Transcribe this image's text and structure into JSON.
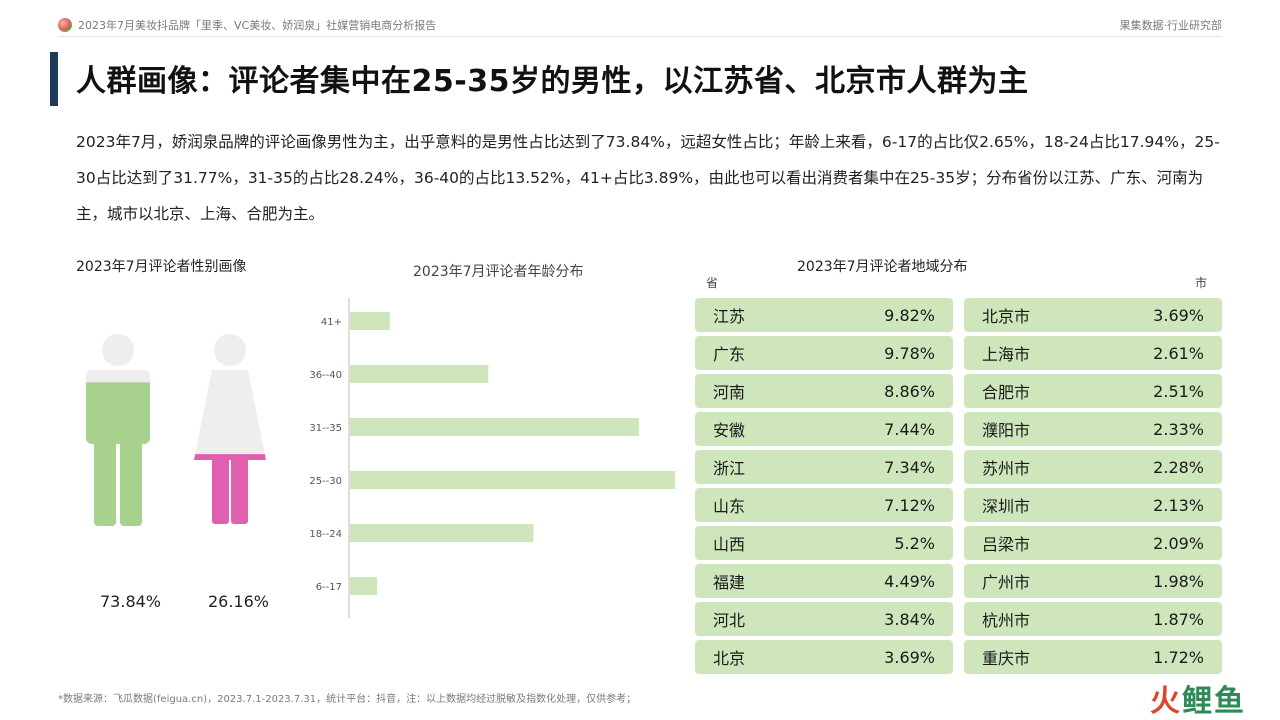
{
  "header": {
    "left": "2023年7月美妆抖品牌「里季、VC美妆、娇润泉」社媒营销电商分析报告",
    "right": "果集数据·行业研究部"
  },
  "title": "人群画像：评论者集中在25-35岁的男性，以江苏省、北京市人群为主",
  "paragraph": "2023年7月，娇润泉品牌的评论画像男性为主，出乎意料的是男性占比达到了73.84%，远超女性占比；年龄上来看，6-17的占比仅2.65%，18-24占比17.94%，25-30占比达到了31.77%，31-35的占比28.24%，36-40的占比13.52%，41+占比3.89%，由此也可以看出消费者集中在25-35岁；分布省份以江苏、广东、河南为主，城市以北京、上海、合肥为主。",
  "gender": {
    "title": "2023年7月评论者性别画像",
    "male_pct": "73.84%",
    "female_pct": "26.16%",
    "male_fill": 0.7384,
    "female_fill": 0.2616,
    "colors": {
      "male": "#a9d18e",
      "female": "#e05fae",
      "empty": "#eeeeee"
    }
  },
  "chart_data": {
    "type": "bar",
    "orientation": "horizontal",
    "title": "2023年7月评论者年龄分布",
    "categories": [
      "41+",
      "36--40",
      "31--35",
      "25--30",
      "18--24",
      "6--17"
    ],
    "values": [
      3.89,
      13.52,
      28.24,
      31.77,
      17.94,
      2.65
    ],
    "xlim": [
      0,
      31.77
    ],
    "bar_color": "#cfe6bd"
  },
  "region": {
    "title": "2023年7月评论者地域分布",
    "province_head": "省",
    "city_head": "市",
    "provinces": [
      {
        "name": "江苏",
        "value": "9.82%"
      },
      {
        "name": "广东",
        "value": "9.78%"
      },
      {
        "name": "河南",
        "value": "8.86%"
      },
      {
        "name": "安徽",
        "value": "7.44%"
      },
      {
        "name": "浙江",
        "value": "7.34%"
      },
      {
        "name": "山东",
        "value": "7.12%"
      },
      {
        "name": "山西",
        "value": "5.2%"
      },
      {
        "name": "福建",
        "value": "4.49%"
      },
      {
        "name": "河北",
        "value": "3.84%"
      },
      {
        "name": "北京",
        "value": "3.69%"
      }
    ],
    "cities": [
      {
        "name": "北京市",
        "value": "3.69%"
      },
      {
        "name": "上海市",
        "value": "2.61%"
      },
      {
        "name": "合肥市",
        "value": "2.51%"
      },
      {
        "name": "濮阳市",
        "value": "2.33%"
      },
      {
        "name": "苏州市",
        "value": "2.28%"
      },
      {
        "name": "深圳市",
        "value": "2.13%"
      },
      {
        "name": "吕梁市",
        "value": "2.09%"
      },
      {
        "name": "广州市",
        "value": "1.98%"
      },
      {
        "name": "杭州市",
        "value": "1.87%"
      },
      {
        "name": "重庆市",
        "value": "1.72%"
      }
    ]
  },
  "footer": "*数据来源：飞瓜数据(feigua.cn)，2023.7.1-2023.7.31，统计平台：抖音，注：以上数据均经过脱敏及指数化处理，仅供参考；",
  "brand": {
    "part1": "火",
    "part2": "鲤鱼"
  }
}
